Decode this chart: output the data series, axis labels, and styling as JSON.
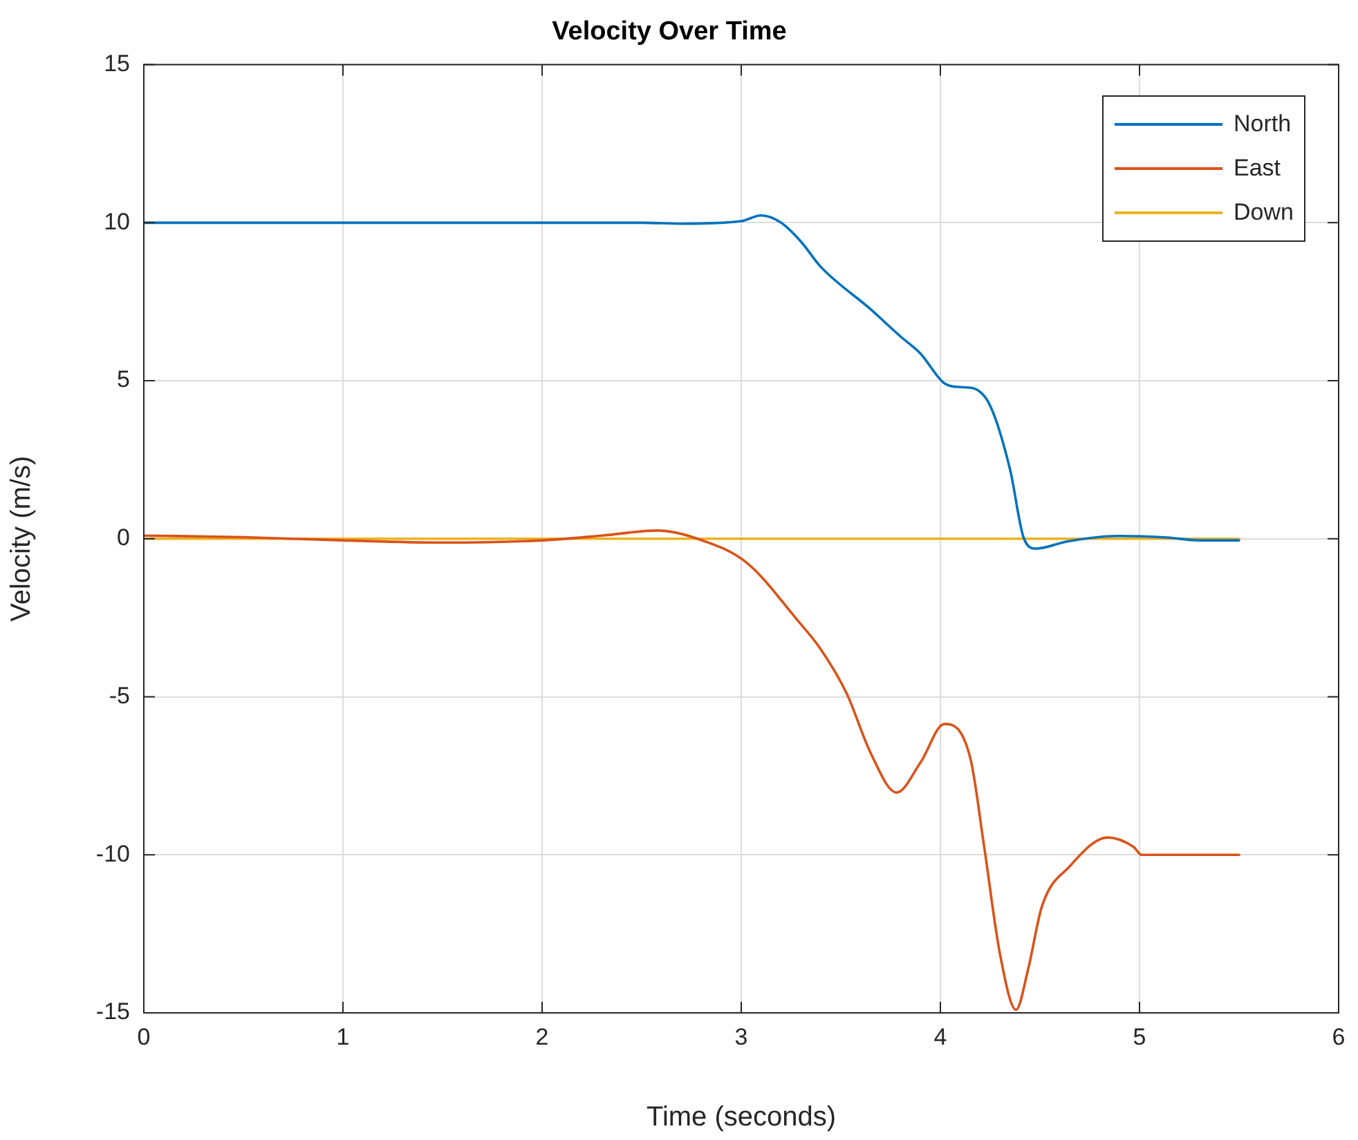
{
  "chart_data": {
    "type": "line",
    "title": "Velocity Over Time",
    "xlabel": "Time (seconds)",
    "ylabel": "Velocity (m/s)",
    "xlim": [
      0,
      6
    ],
    "xticks": [
      0,
      1,
      2,
      3,
      4,
      5,
      6
    ],
    "ylim": [
      -15,
      15
    ],
    "yticks": [
      -15,
      -10,
      -5,
      0,
      5,
      10,
      15
    ],
    "grid": true,
    "legend": "top right",
    "line_style": "solid",
    "marker": "none",
    "series": [
      {
        "name": "North",
        "color": "#0072bd",
        "x": [
          0,
          1,
          2,
          2.5,
          2.7,
          3,
          3.1,
          3.2,
          3.3,
          3.4,
          3.65,
          3.8,
          3.9,
          4.02,
          4.1,
          4.16,
          4.25,
          4.35,
          4.42,
          4.48,
          4.64,
          4.89,
          5.14,
          5.3,
          5.5
        ],
        "values": [
          10,
          10,
          10,
          10,
          9.97,
          10.05,
          10.23,
          10.0,
          9.4,
          8.6,
          7.26,
          6.4,
          5.86,
          4.92,
          4.8,
          4.77,
          4.21,
          2.19,
          0,
          -0.31,
          -0.08,
          0.09,
          0.04,
          -0.05,
          -0.05
        ]
      },
      {
        "name": "East",
        "color": "#d95319",
        "x": [
          0,
          0.5,
          1,
          1.5,
          2,
          2.3,
          2.58,
          2.78,
          3.03,
          3.28,
          3.4,
          3.53,
          3.65,
          3.78,
          3.9,
          4.02,
          4.15,
          4.22,
          4.3,
          4.38,
          4.44,
          4.51,
          4.65,
          4.84,
          4.97,
          5.01,
          5.5
        ],
        "values": [
          0.1,
          0.05,
          -0.05,
          -0.12,
          -0.05,
          0.1,
          0.26,
          0,
          -0.77,
          -2.56,
          -3.5,
          -4.9,
          -6.78,
          -8.03,
          -7.08,
          -5.86,
          -6.93,
          -9.75,
          -13.16,
          -14.9,
          -13.64,
          -11.63,
          -10.36,
          -9.45,
          -9.75,
          -10,
          -10
        ]
      },
      {
        "name": "Down",
        "color": "#edb120",
        "x": [
          0,
          5.5
        ],
        "values": [
          0,
          0
        ]
      }
    ]
  }
}
